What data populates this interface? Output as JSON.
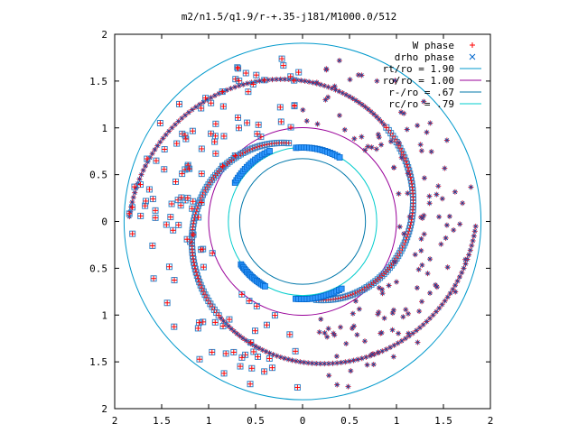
{
  "chart_data": {
    "type": "scatter",
    "title": "m2/n1.5/q1.9/r-+.35-j181/M1000.0/512",
    "xlim": [
      -2,
      2
    ],
    "ylim": [
      -2,
      2
    ],
    "x_tick_labels": [
      "2",
      "1.5",
      "1",
      "0.5",
      "0",
      "0.5",
      "1",
      "1.5",
      "2"
    ],
    "y_tick_labels": [
      "2",
      "1.5",
      "1",
      "0.5",
      "0",
      "0.5",
      "1",
      "1.5",
      "2"
    ],
    "legend_position": "top-right",
    "legend": [
      {
        "label": "W phase",
        "marker": "+",
        "color": "#ff0000"
      },
      {
        "label": "drho phase",
        "marker": "x",
        "color": "#0066cc"
      },
      {
        "label": "rt/ro = 1.90",
        "line": true,
        "color": "#0099cc"
      },
      {
        "label": "ro/ro = 1.00",
        "line": true,
        "color": "#990099"
      },
      {
        "label": "r-/ro = .67",
        "line": true,
        "color": "#0077aa"
      },
      {
        "label": "rc/ro = .79",
        "line": true,
        "color": "#00cccc"
      }
    ],
    "circles": [
      {
        "name": "rt/ro = 1.90",
        "r": 1.9,
        "color": "#0099cc"
      },
      {
        "name": "ro/ro = 1.00",
        "r": 1.0,
        "color": "#990099"
      },
      {
        "name": "r-/ro = .67",
        "r": 0.67,
        "color": "#0077aa"
      },
      {
        "name": "rc/ro = .79",
        "r": 0.79,
        "color": "#00cccc"
      }
    ],
    "series": [
      {
        "name": "W phase",
        "arm_r0": 0.85,
        "arm_r1": 1.85,
        "arm_theta_start_deg": 100,
        "arm_span_deg": 260,
        "n_arms": 2,
        "points_per_arm": 160,
        "scatter_count": 260
      },
      {
        "name": "drho phase",
        "blue_segments": [
          {
            "r": 0.79,
            "theta_start_deg": 95,
            "theta_end_deg": 60
          },
          {
            "r": 0.83,
            "theta_start_deg": 150,
            "theta_end_deg": 115
          },
          {
            "r": 0.83,
            "theta_start_deg": 265,
            "theta_end_deg": 300
          },
          {
            "r": 0.8,
            "theta_start_deg": 215,
            "theta_end_deg": 240
          }
        ],
        "points_per_segment": 18
      }
    ]
  }
}
